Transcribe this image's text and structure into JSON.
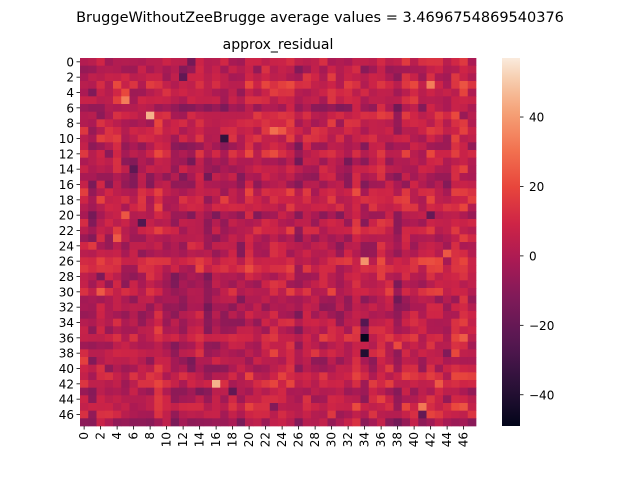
{
  "chart_data": {
    "type": "heatmap",
    "suptitle": "BruggeWithoutZeeBrugge  average values = 3.4696754869540376",
    "title": "approx_residual",
    "rows": 48,
    "cols": 48,
    "x_tick_labels": [
      "0",
      "2",
      "4",
      "6",
      "8",
      "10",
      "12",
      "14",
      "16",
      "18",
      "20",
      "22",
      "24",
      "26",
      "28",
      "30",
      "32",
      "34",
      "36",
      "38",
      "40",
      "42",
      "44",
      "46"
    ],
    "y_tick_labels": [
      "0",
      "2",
      "4",
      "6",
      "8",
      "10",
      "12",
      "14",
      "16",
      "18",
      "20",
      "22",
      "24",
      "26",
      "28",
      "30",
      "32",
      "34",
      "36",
      "38",
      "40",
      "42",
      "44",
      "46"
    ],
    "colorbar": {
      "vmin": -49,
      "vmax": 57,
      "ticks": [
        -40,
        -20,
        0,
        20,
        40
      ]
    },
    "colormap": "rocket",
    "average_value": 3.4696754869540376,
    "notable_cells": [
      {
        "row": 36,
        "col": 34,
        "value": -48
      },
      {
        "row": 38,
        "col": 34,
        "value": -40
      },
      {
        "row": 10,
        "col": 17,
        "value": -35
      },
      {
        "row": 7,
        "col": 8,
        "value": 45
      },
      {
        "row": 42,
        "col": 16,
        "value": 45
      },
      {
        "row": 26,
        "col": 34,
        "value": 38
      },
      {
        "row": 3,
        "col": 42,
        "value": 33
      },
      {
        "row": 34,
        "col": 34,
        "value": -25
      }
    ]
  }
}
